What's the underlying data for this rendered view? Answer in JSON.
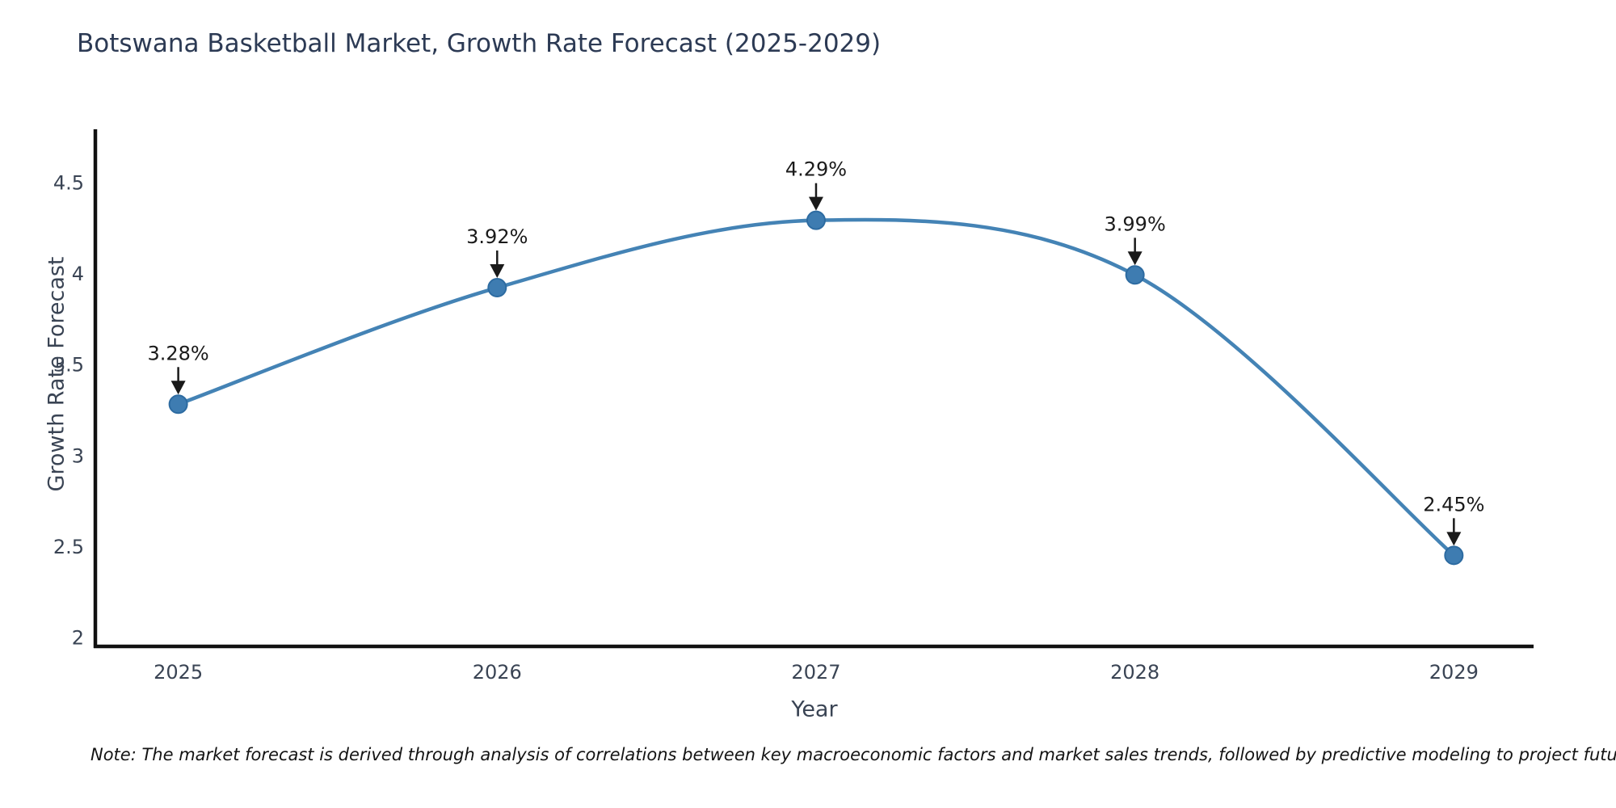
{
  "title": "Botswana Basketball Market, Growth Rate Forecast (2025-2029)",
  "footnote": "Note: The market forecast is derived through analysis of correlations between key macroeconomic factors and market sales trends, followed by predictive modeling to project future sales",
  "chart_data": {
    "type": "line",
    "x": [
      2025,
      2026,
      2027,
      2028,
      2029
    ],
    "values": [
      3.28,
      3.92,
      4.29,
      3.99,
      2.45
    ],
    "point_labels": [
      "3.28%",
      "3.92%",
      "4.29%",
      "3.99%",
      "2.45%"
    ],
    "title": "Botswana Basketball Market, Growth Rate Forecast (2025-2029)",
    "xlabel": "Year",
    "ylabel": "Growth Rate Forecast",
    "xticks": [
      "2025",
      "2026",
      "2027",
      "2028",
      "2029"
    ],
    "xtick_values": [
      2025,
      2026,
      2027,
      2028,
      2029
    ],
    "yticks": [
      "2",
      "2.5",
      "3",
      "3.5",
      "4",
      "4.5"
    ],
    "ytick_values": [
      2,
      2.5,
      3,
      3.5,
      4,
      4.5
    ],
    "xlim": [
      2024.74,
      2029.25
    ],
    "ylim": [
      1.95,
      4.79
    ],
    "grid": false,
    "legend_position": "none",
    "line_shape": "spline",
    "marker": "circle",
    "annotation_arrows": "down",
    "colors": {
      "line": "#4483b5",
      "marker_fill": "#3e7cb1",
      "marker_edge": "#2d6ba1",
      "annotation": "#1a1a1a",
      "axis_spine": "#111111",
      "tick_text": "#3a4454",
      "title_text": "#2c3a54",
      "background": "#ffffff"
    }
  }
}
